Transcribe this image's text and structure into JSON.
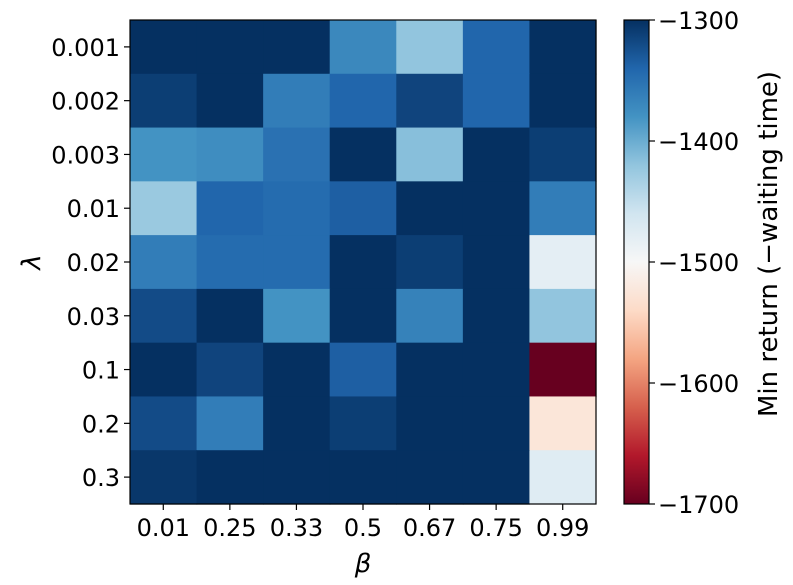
{
  "chart_data": {
    "type": "heatmap",
    "title": "",
    "xlabel": "β",
    "ylabel": "λ",
    "x_categories": [
      "0.01",
      "0.25",
      "0.33",
      "0.5",
      "0.67",
      "0.75",
      "0.99"
    ],
    "y_categories": [
      "0.001",
      "0.002",
      "0.003",
      "0.01",
      "0.02",
      "0.03",
      "0.1",
      "0.2",
      "0.3"
    ],
    "values": [
      [
        -1300,
        -1300,
        -1300,
        -1370,
        -1420,
        -1340,
        -1300
      ],
      [
        -1310,
        -1300,
        -1360,
        -1340,
        -1315,
        -1340,
        -1300
      ],
      [
        -1380,
        -1375,
        -1350,
        -1300,
        -1415,
        -1300,
        -1310
      ],
      [
        -1425,
        -1340,
        -1345,
        -1335,
        -1300,
        -1300,
        -1360
      ],
      [
        -1360,
        -1345,
        -1345,
        -1300,
        -1310,
        -1300,
        -1480
      ],
      [
        -1320,
        -1300,
        -1380,
        -1300,
        -1365,
        -1300,
        -1420
      ],
      [
        -1300,
        -1315,
        -1300,
        -1335,
        -1300,
        -1300,
        -1700
      ],
      [
        -1320,
        -1360,
        -1300,
        -1310,
        -1300,
        -1300,
        -1525
      ],
      [
        -1305,
        -1300,
        -1300,
        -1300,
        -1300,
        -1300,
        -1475
      ]
    ],
    "colorbar": {
      "label": "Min return (−waiting time)",
      "min": -1700,
      "max": -1300,
      "ticks": [
        "−1300",
        "−1400",
        "−1500",
        "−1600",
        "−1700"
      ],
      "tick_values": [
        -1300,
        -1400,
        -1500,
        -1600,
        -1700
      ],
      "colormap": "RdBu"
    },
    "colormap_stops": [
      "#67001f",
      "#b2182b",
      "#d6604d",
      "#f4a582",
      "#fddbc7",
      "#f7f7f7",
      "#d1e5f0",
      "#92c5de",
      "#4393c3",
      "#2166ac",
      "#053061"
    ]
  }
}
